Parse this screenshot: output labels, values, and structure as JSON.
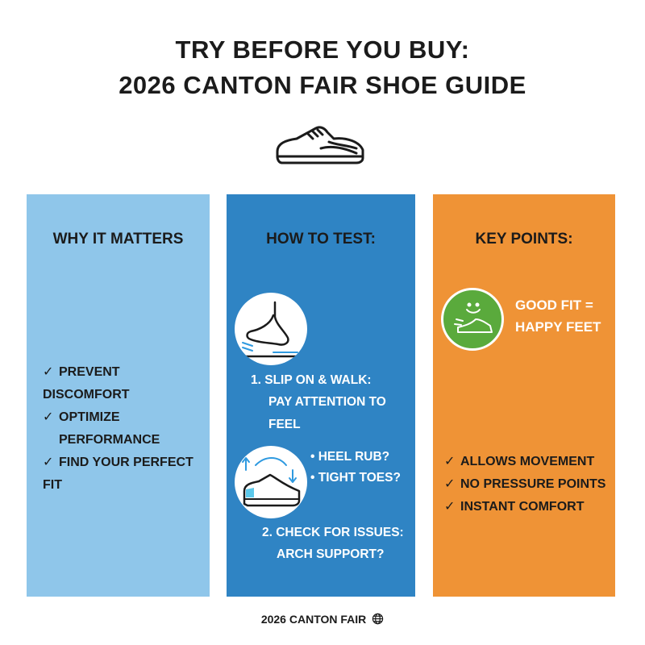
{
  "title": {
    "line1": "TRY BEFORE YOU BUY:",
    "line2": "2026 CANTON FAIR SHOE GUIDE"
  },
  "colors": {
    "why": "#8fc6ea",
    "how": "#2f84c4",
    "key": "#ef9336",
    "good_fit": "#5aaa3c"
  },
  "why": {
    "heading": "WHY IT MATTERS",
    "items": [
      "PREVENT DISCOMFORT",
      "OPTIMIZE",
      "PERFORMANCE",
      "FIND YOUR PERFECT FIT"
    ]
  },
  "how": {
    "heading": "HOW TO TEST:",
    "step1": {
      "line1": "1. SLIP ON & WALK:",
      "line2": "PAY ATTENTION TO FEEL"
    },
    "bullets": [
      "• HEEL RUB?",
      "• TIGHT TOES?"
    ],
    "step2": {
      "line1": "2. CHECK FOR ISSUES:",
      "line2": "ARCH SUPPORT?"
    }
  },
  "key": {
    "heading": "KEY POINTS:",
    "badge": {
      "line1": "GOOD FIT =",
      "line2": "HAPPY FEET"
    },
    "items": [
      "ALLOWS MOVEMENT",
      "NO PRESSURE POINTS",
      "INSTANT COMFORT"
    ]
  },
  "footer": {
    "text": "2026 CANTON FAIR"
  },
  "icons": {
    "check": "✓",
    "globe": "globe-icon"
  }
}
